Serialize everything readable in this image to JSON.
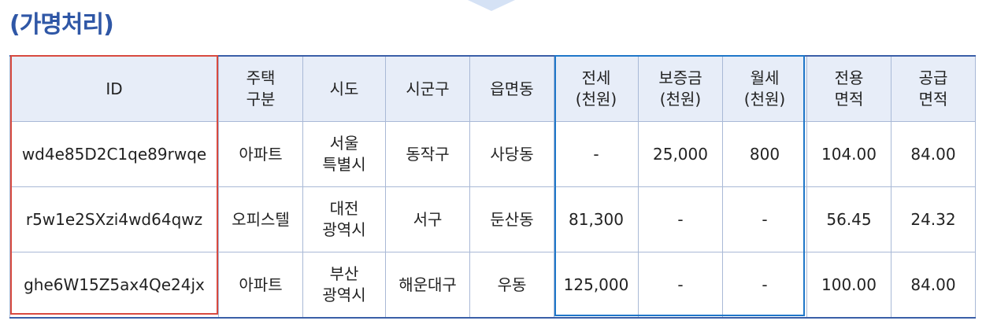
{
  "title": "(가명처리)",
  "headers": {
    "id": "ID",
    "housing_type": [
      "주택",
      "구분"
    ],
    "sido": "시도",
    "sigungu": "시군구",
    "eupmyeondong": "읍면동",
    "jeonse": [
      "전세",
      "(천원)"
    ],
    "deposit": [
      "보증금",
      "(천원)"
    ],
    "monthly": [
      "월세",
      "(천원)"
    ],
    "exclusive_area": [
      "전용",
      "면적"
    ],
    "supply_area": [
      "공급",
      "면적"
    ]
  },
  "rows": [
    {
      "id": "wd4e85D2C1qe89rwqe",
      "housing_type": "아파트",
      "sido": [
        "서울",
        "특별시"
      ],
      "sigungu": "동작구",
      "eupmyeondong": "사당동",
      "jeonse": "-",
      "deposit": "25,000",
      "monthly": "800",
      "exclusive_area": "104.00",
      "supply_area": "84.00"
    },
    {
      "id": "r5w1e2SXzi4wd64qwz",
      "housing_type": "오피스텔",
      "sido": [
        "대전",
        "광역시"
      ],
      "sigungu": "서구",
      "eupmyeondong": "둔산동",
      "jeonse": "81,300",
      "deposit": "-",
      "monthly": "-",
      "exclusive_area": "56.45",
      "supply_area": "24.32"
    },
    {
      "id": "ghe6W15Z5ax4Qe24jx",
      "housing_type": "아파트",
      "sido": [
        "부산",
        "광역시"
      ],
      "sigungu": "해운대구",
      "eupmyeondong": "우동",
      "jeonse": "125,000",
      "deposit": "-",
      "monthly": "-",
      "exclusive_area": "100.00",
      "supply_area": "84.00"
    }
  ],
  "colors": {
    "title": "#2f57a6",
    "header_bg": "#e7edf8",
    "grid": "#a9b9d6",
    "highlight_id": "#d84a3f",
    "highlight_rent": "#1f77c9"
  }
}
